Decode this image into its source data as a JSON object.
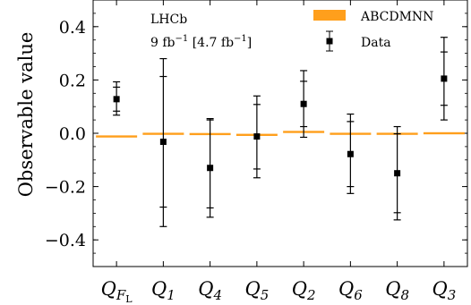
{
  "chart_data": {
    "type": "scatter",
    "ylabel": "Observable value",
    "ylim": [
      -0.5,
      0.5
    ],
    "yticks": [
      -0.4,
      -0.2,
      0.0,
      0.2,
      0.4
    ],
    "ytick_labels": [
      "−0.4",
      "−0.2",
      "0.0",
      "0.2",
      "0.4"
    ],
    "categories": [
      {
        "main": "Q",
        "sub": "F",
        "subsub": "L"
      },
      {
        "main": "Q",
        "sub": "1"
      },
      {
        "main": "Q",
        "sub": "4"
      },
      {
        "main": "Q",
        "sub": "5"
      },
      {
        "main": "Q",
        "sub": "2"
      },
      {
        "main": "Q",
        "sub": "6"
      },
      {
        "main": "Q",
        "sub": "8"
      },
      {
        "main": "Q",
        "sub": "3"
      }
    ],
    "annotation": {
      "experiment": "LHCb",
      "lumi_main": "9 fb",
      "lumi_exp1": "−1",
      "lumi_mid": " [4.7 fb",
      "lumi_exp2": "−1",
      "lumi_end": "]"
    },
    "legend": {
      "placement": "top-right",
      "band_label": "ABCDMNN",
      "points_label": "Data"
    },
    "colors": {
      "band": "#ff9f1c",
      "points": "#000000"
    },
    "series": [
      {
        "name": "ABCDMNN",
        "values": [
          -0.012,
          -0.002,
          -0.003,
          -0.006,
          0.005,
          -0.002,
          -0.002,
          0.0
        ]
      },
      {
        "name": "Data",
        "values": [
          0.128,
          -0.032,
          -0.13,
          -0.012,
          0.11,
          -0.078,
          -0.15,
          0.205
        ],
        "stat_err_low": [
          0.045,
          0.245,
          0.15,
          0.122,
          0.085,
          0.122,
          0.148,
          0.1
        ],
        "stat_err_high": [
          0.045,
          0.245,
          0.18,
          0.12,
          0.085,
          0.122,
          0.148,
          0.1
        ],
        "tot_err_low": [
          0.06,
          0.318,
          0.185,
          0.155,
          0.125,
          0.148,
          0.175,
          0.155
        ],
        "tot_err_high": [
          0.065,
          0.312,
          0.185,
          0.152,
          0.125,
          0.15,
          0.175,
          0.155
        ]
      }
    ]
  }
}
